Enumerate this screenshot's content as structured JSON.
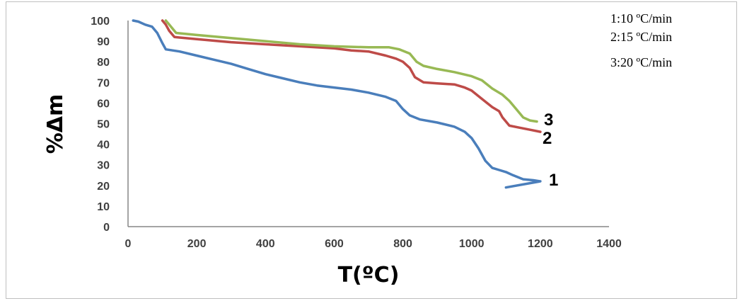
{
  "chart_data": {
    "type": "line",
    "title": "",
    "xlabel": "T(ºC)",
    "ylabel": "%Δm",
    "xlim": [
      0,
      1400
    ],
    "ylim": [
      0,
      100
    ],
    "x_ticks": [
      0,
      200,
      400,
      600,
      800,
      1000,
      1200,
      1400
    ],
    "y_ticks": [
      0,
      10,
      20,
      30,
      40,
      50,
      60,
      70,
      80,
      90,
      100
    ],
    "grid": false,
    "legend_position": "top-right",
    "legend_entries": [
      "1:10 ºC/min",
      "2:15 ºC/min",
      "3:20 ºC/min"
    ],
    "series": [
      {
        "name": "1",
        "color": "#4a7ebb",
        "points": [
          [
            15,
            100
          ],
          [
            30,
            99.5
          ],
          [
            50,
            98
          ],
          [
            70,
            97
          ],
          [
            85,
            94
          ],
          [
            100,
            89
          ],
          [
            110,
            86
          ],
          [
            150,
            85
          ],
          [
            200,
            83
          ],
          [
            250,
            81
          ],
          [
            300,
            79
          ],
          [
            350,
            76.5
          ],
          [
            400,
            74
          ],
          [
            450,
            72
          ],
          [
            500,
            70
          ],
          [
            550,
            68.5
          ],
          [
            600,
            67.5
          ],
          [
            650,
            66.5
          ],
          [
            700,
            65
          ],
          [
            750,
            63
          ],
          [
            780,
            61
          ],
          [
            800,
            57
          ],
          [
            820,
            54
          ],
          [
            850,
            52
          ],
          [
            900,
            50.5
          ],
          [
            950,
            48.5
          ],
          [
            980,
            46
          ],
          [
            1000,
            43
          ],
          [
            1020,
            38
          ],
          [
            1040,
            32
          ],
          [
            1060,
            28.5
          ],
          [
            1080,
            27.5
          ],
          [
            1100,
            26.5
          ],
          [
            1120,
            25
          ],
          [
            1150,
            23
          ],
          [
            1180,
            22.5
          ],
          [
            1200,
            22
          ],
          [
            1100,
            19
          ]
        ]
      },
      {
        "name": "2",
        "color": "#be4b48",
        "points": [
          [
            100,
            100
          ],
          [
            110,
            98
          ],
          [
            120,
            95
          ],
          [
            135,
            92
          ],
          [
            200,
            91
          ],
          [
            300,
            89.5
          ],
          [
            400,
            88.5
          ],
          [
            500,
            87.5
          ],
          [
            600,
            86.5
          ],
          [
            650,
            85.5
          ],
          [
            700,
            85
          ],
          [
            750,
            83
          ],
          [
            780,
            81.5
          ],
          [
            800,
            80
          ],
          [
            820,
            77
          ],
          [
            835,
            72.5
          ],
          [
            860,
            70
          ],
          [
            900,
            69.5
          ],
          [
            950,
            69
          ],
          [
            980,
            67.5
          ],
          [
            1000,
            66
          ],
          [
            1030,
            62
          ],
          [
            1060,
            58
          ],
          [
            1080,
            56
          ],
          [
            1090,
            53
          ],
          [
            1110,
            49
          ],
          [
            1140,
            48
          ],
          [
            1170,
            47
          ],
          [
            1200,
            46
          ]
        ]
      },
      {
        "name": "3",
        "color": "#98b954",
        "points": [
          [
            110,
            100
          ],
          [
            120,
            98
          ],
          [
            140,
            94
          ],
          [
            200,
            93
          ],
          [
            300,
            91.5
          ],
          [
            400,
            90
          ],
          [
            500,
            88.5
          ],
          [
            600,
            87.5
          ],
          [
            700,
            87
          ],
          [
            760,
            87
          ],
          [
            790,
            86
          ],
          [
            820,
            84
          ],
          [
            840,
            80
          ],
          [
            860,
            78
          ],
          [
            900,
            76.5
          ],
          [
            950,
            75
          ],
          [
            1000,
            73
          ],
          [
            1030,
            71
          ],
          [
            1060,
            67
          ],
          [
            1090,
            64
          ],
          [
            1110,
            61
          ],
          [
            1130,
            57
          ],
          [
            1150,
            53
          ],
          [
            1170,
            51.5
          ],
          [
            1190,
            51
          ]
        ]
      }
    ],
    "annotations": [
      "1",
      "2",
      "3"
    ]
  }
}
